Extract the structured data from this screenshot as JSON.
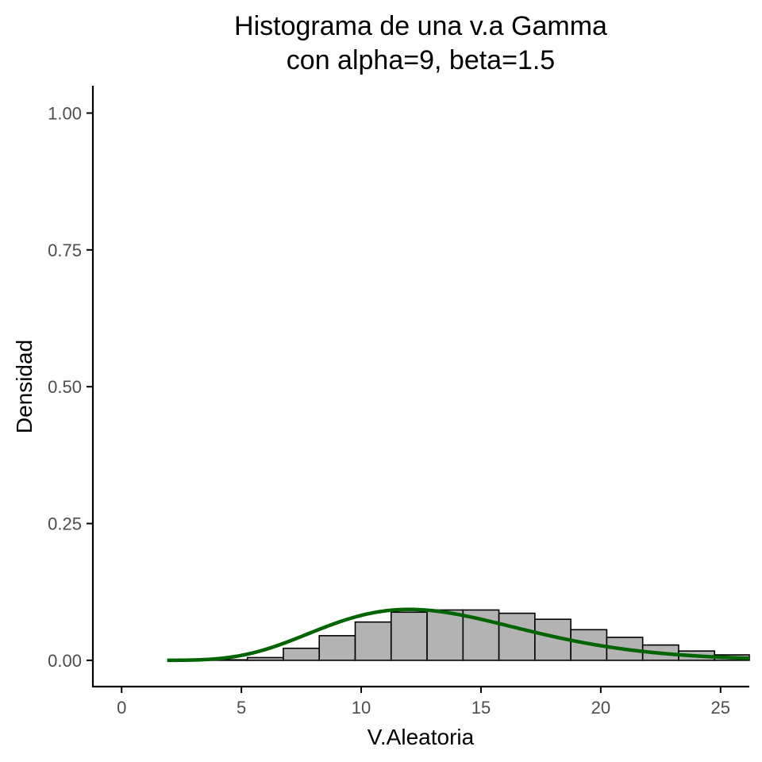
{
  "chart_data": {
    "type": "bar",
    "title_lines": [
      "Histograma de una v.a Gamma",
      "con alpha=9, beta=1.5"
    ],
    "xlabel": "V.Aleatoria",
    "ylabel": "Densidad",
    "xlim": [
      -1.2,
      26.2
    ],
    "ylim": [
      -0.048,
      1.05
    ],
    "x_ticks": [
      0,
      5,
      10,
      15,
      20,
      25
    ],
    "x_tick_labels": [
      "0",
      "5",
      "10",
      "15",
      "20",
      "25"
    ],
    "y_ticks": [
      0,
      0.25,
      0.5,
      0.75,
      1.0
    ],
    "y_tick_labels": [
      "0.00",
      "0.25",
      "0.50",
      "0.75",
      "1.00"
    ],
    "grid": false,
    "bins": {
      "start": 0.75,
      "width": 1.5,
      "values": [
        0.0,
        0.0,
        0.001,
        0.005,
        0.022,
        0.045,
        0.07,
        0.088,
        0.092,
        0.092,
        0.086,
        0.075,
        0.056,
        0.042,
        0.028,
        0.017,
        0.01,
        0.005
      ]
    },
    "density_curve": {
      "shape": 9,
      "rate": 0.6667,
      "x_range": [
        1.9,
        26.2
      ]
    },
    "colors": {
      "bar_fill": "#b3b3b3",
      "bar_stroke": "#000000",
      "curve": "#006400",
      "axis": "#000000"
    }
  }
}
